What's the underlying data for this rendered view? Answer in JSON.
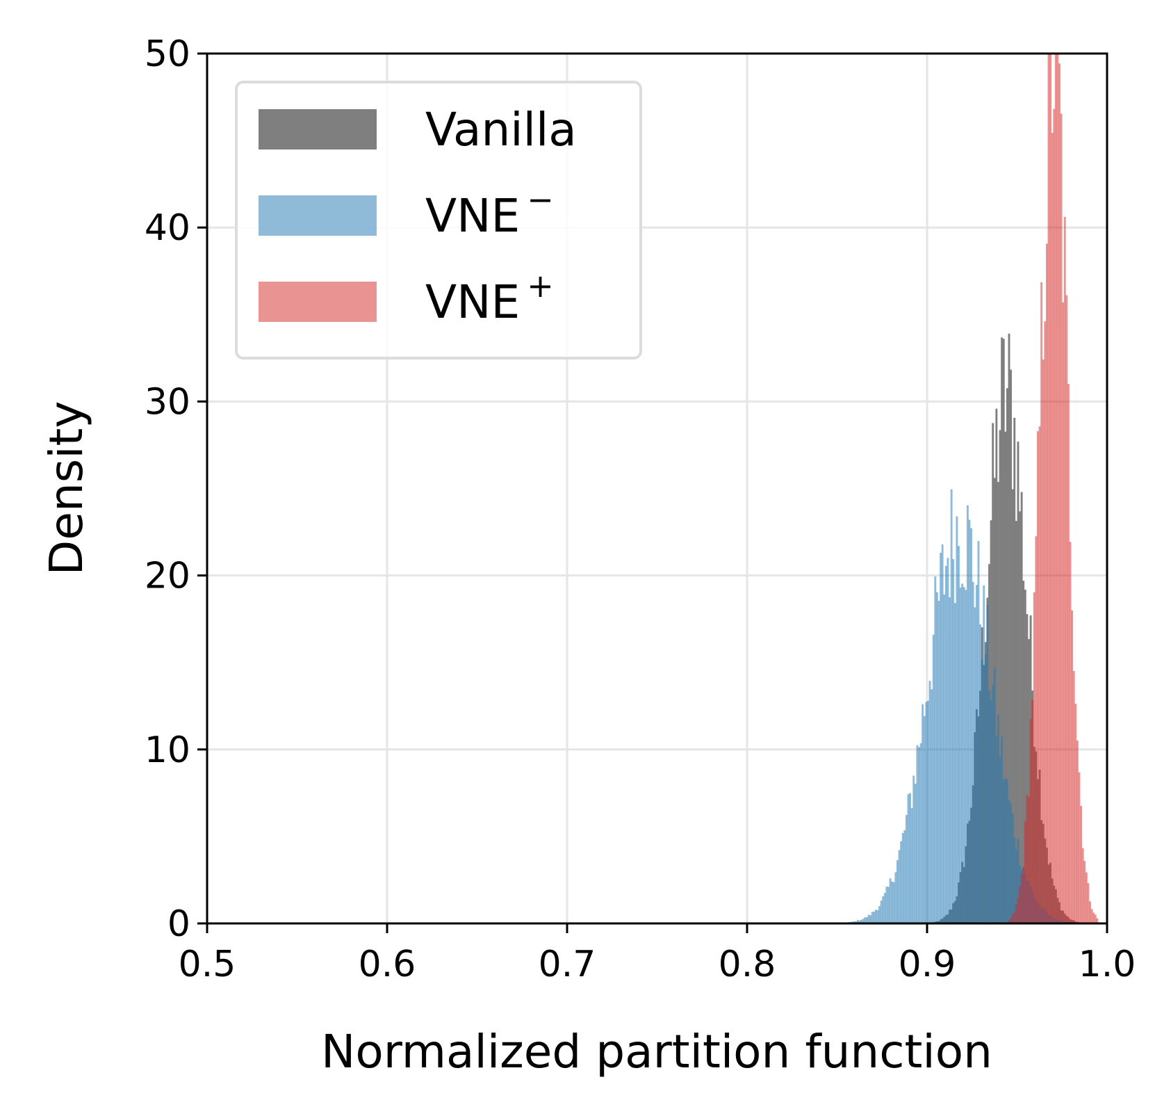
{
  "chart_data": {
    "type": "histogram",
    "xlabel": "Normalized partition function",
    "ylabel": "Density",
    "xlim": [
      0.5,
      1.0
    ],
    "ylim": [
      0,
      50
    ],
    "xticks": [
      "0.5",
      "0.6",
      "0.7",
      "0.8",
      "0.9",
      "1.0"
    ],
    "yticks": [
      "0",
      "10",
      "20",
      "30",
      "40",
      "50"
    ],
    "grid": true,
    "legend_position": "top-left",
    "bin_width": 0.001,
    "series": [
      {
        "name": "Vanilla",
        "legend_base": "Vanilla",
        "legend_sup": "",
        "color": "#7f7f7f",
        "opacity": 1.0,
        "mean": 0.944,
        "sd": 0.0115,
        "peak_density": 30.4,
        "range": [
          0.9,
          0.985
        ]
      },
      {
        "name": "VNE⁻",
        "legend_base": "VNE",
        "legend_sup": "−",
        "color": "#1f77b4",
        "opacity": 0.5,
        "mean": 0.918,
        "sd": 0.018,
        "peak_density": 22.6,
        "range": [
          0.843,
          0.985
        ]
      },
      {
        "name": "VNE⁺",
        "legend_base": "VNE",
        "legend_sup": "+",
        "color": "#d62728",
        "opacity": 0.5,
        "mean": 0.9705,
        "sd": 0.0075,
        "peak_density": 50.0,
        "range": [
          0.945,
          0.995
        ]
      }
    ]
  }
}
